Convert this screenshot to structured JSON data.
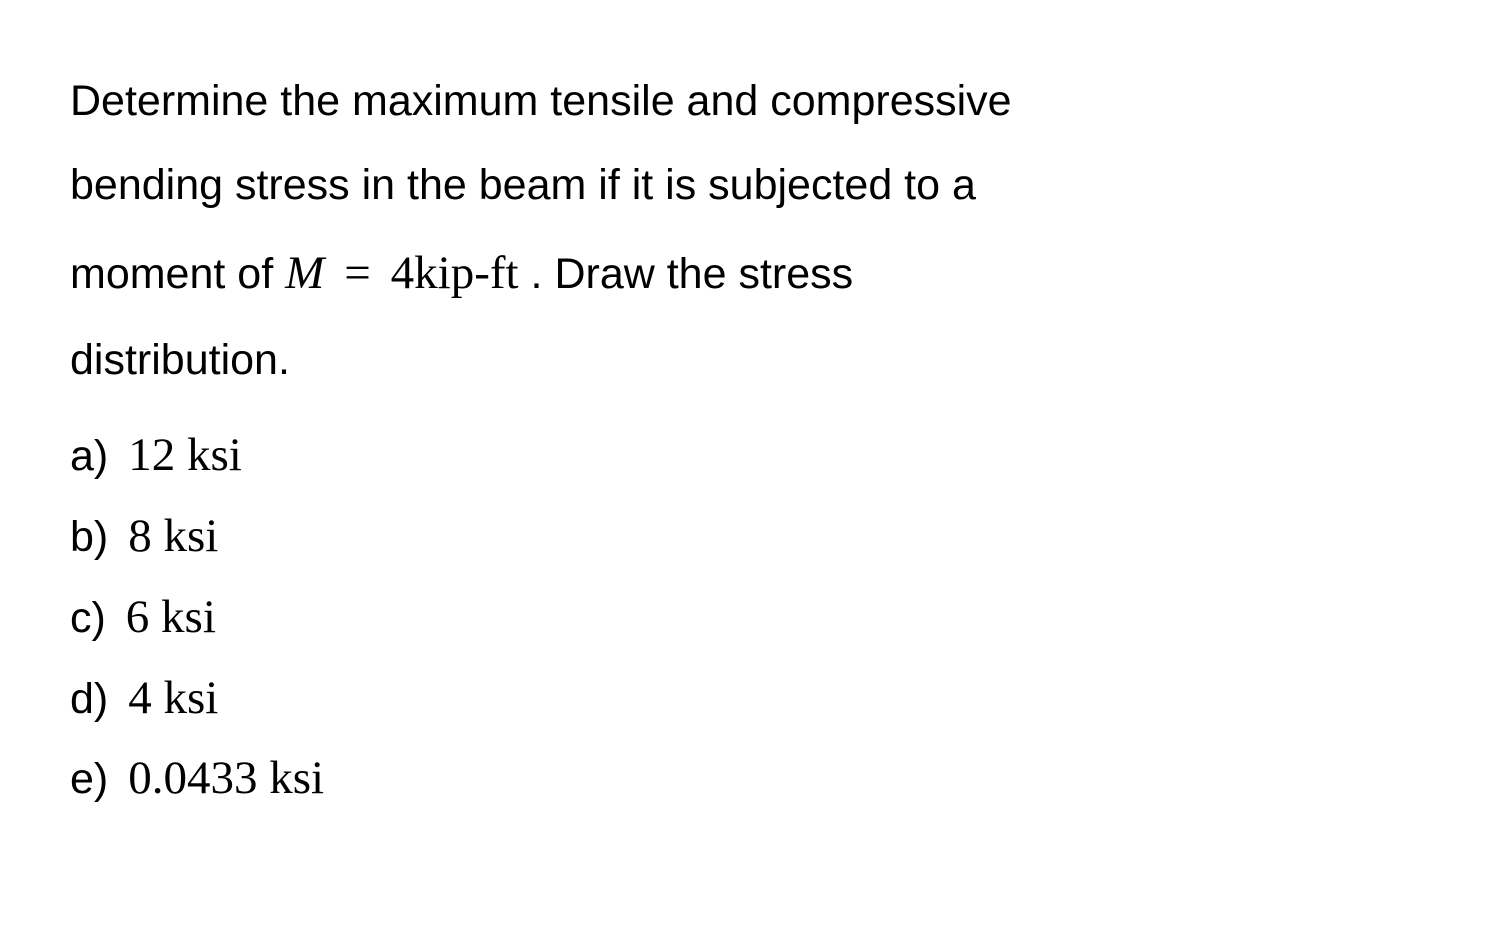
{
  "question": {
    "line1": "Determine the maximum tensile and compressive",
    "line2": "bending stress in the beam if it is subjected to a",
    "line3_pre": "moment of ",
    "moment_var": "M",
    "moment_eq": "=",
    "moment_val": "4kip-ft",
    "line3_post": " . Draw the stress",
    "line4": "distribution."
  },
  "options": [
    {
      "label": "a)",
      "value": "12 ksi"
    },
    {
      "label": "b)",
      "value": "8 ksi"
    },
    {
      "label": "c)",
      "value": "6 ksi"
    },
    {
      "label": "d)",
      "value": "4 ksi"
    },
    {
      "label": "e)",
      "value": "0.0433 ksi"
    }
  ],
  "styling": {
    "background_color": "#ffffff",
    "text_color": "#000000",
    "body_fontsize": 43,
    "math_fontsize": 47,
    "line_height": 1.95,
    "option_line_height": 1.72,
    "body_font": "Arial",
    "math_font": "Times New Roman"
  }
}
